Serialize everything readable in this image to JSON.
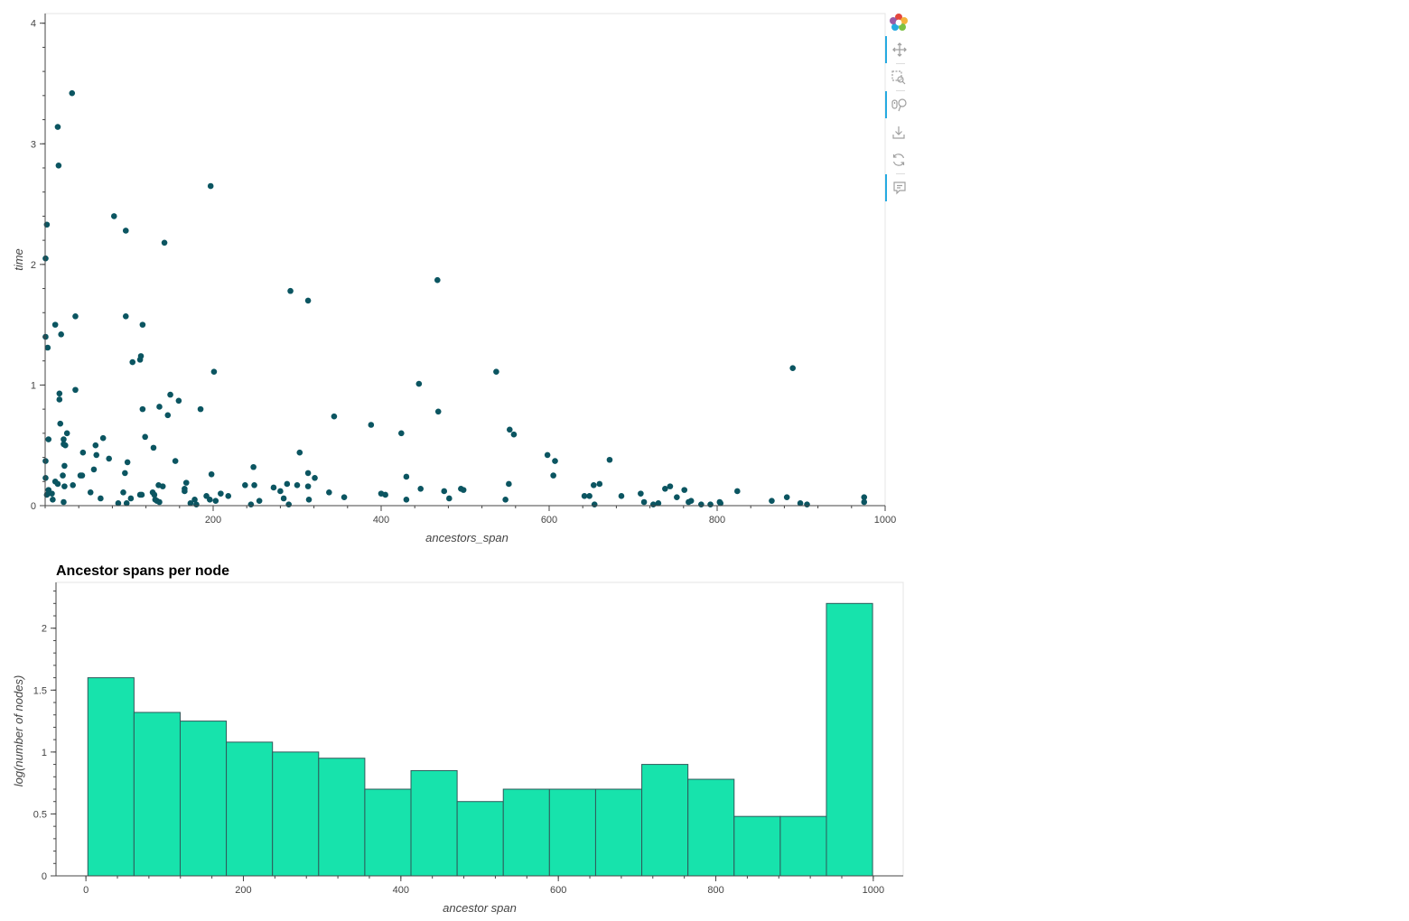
{
  "colors": {
    "scatter_point": "#0b5561",
    "bar_fill": "#17e3ac",
    "bar_stroke": "#2f5a5a",
    "axis": "#444444",
    "frame": "#e5e5e5",
    "toolbar_active": "#26aae1",
    "toolbar_icon": "#a0a0a0"
  },
  "toolbar": {
    "tools": [
      {
        "name": "bokeh-logo-icon",
        "active": false
      },
      {
        "name": "pan-icon",
        "active": true
      },
      {
        "name": "box-zoom-icon",
        "active": false
      },
      {
        "name": "wheel-zoom-icon",
        "active": true
      },
      {
        "name": "save-icon",
        "active": false
      },
      {
        "name": "reset-icon",
        "active": false
      },
      {
        "name": "hover-icon",
        "active": true
      }
    ]
  },
  "chart_data": [
    {
      "type": "scatter",
      "title": "",
      "xlabel": "ancestors_span",
      "ylabel": "time",
      "xlim": [
        0,
        1000
      ],
      "ylim": [
        0,
        4.08
      ],
      "x_ticks": [
        200,
        400,
        600,
        800,
        1000
      ],
      "y_ticks": [
        0,
        1,
        2,
        3,
        4
      ],
      "grid": false,
      "points": [
        [
          32,
          3.42
        ],
        [
          15,
          3.14
        ],
        [
          16,
          2.82
        ],
        [
          197,
          2.65
        ],
        [
          2,
          2.33
        ],
        [
          82,
          2.4
        ],
        [
          96,
          2.28
        ],
        [
          142,
          2.18
        ],
        [
          0.5,
          2.05
        ],
        [
          292,
          1.78
        ],
        [
          313,
          1.7
        ],
        [
          467,
          1.87
        ],
        [
          36,
          1.57
        ],
        [
          96,
          1.57
        ],
        [
          116,
          1.5
        ],
        [
          12,
          1.5
        ],
        [
          19,
          1.42
        ],
        [
          0.5,
          1.4
        ],
        [
          3,
          1.31
        ],
        [
          114,
          1.24
        ],
        [
          113,
          1.21
        ],
        [
          104,
          1.19
        ],
        [
          201,
          1.11
        ],
        [
          537,
          1.11
        ],
        [
          890,
          1.14
        ],
        [
          445,
          1.01
        ],
        [
          36,
          0.96
        ],
        [
          17,
          0.93
        ],
        [
          17,
          0.88
        ],
        [
          149,
          0.92
        ],
        [
          159,
          0.87
        ],
        [
          136,
          0.82
        ],
        [
          116,
          0.8
        ],
        [
          185,
          0.8
        ],
        [
          146,
          0.75
        ],
        [
          344,
          0.74
        ],
        [
          468,
          0.78
        ],
        [
          388,
          0.67
        ],
        [
          18,
          0.68
        ],
        [
          553,
          0.63
        ],
        [
          558,
          0.59
        ],
        [
          424,
          0.6
        ],
        [
          26,
          0.6
        ],
        [
          119,
          0.57
        ],
        [
          4,
          0.55
        ],
        [
          22,
          0.55
        ],
        [
          69,
          0.56
        ],
        [
          22,
          0.51
        ],
        [
          24,
          0.5
        ],
        [
          60,
          0.5
        ],
        [
          129,
          0.48
        ],
        [
          45,
          0.44
        ],
        [
          303,
          0.44
        ],
        [
          598,
          0.42
        ],
        [
          61,
          0.42
        ],
        [
          0.5,
          0.37
        ],
        [
          76,
          0.39
        ],
        [
          155,
          0.37
        ],
        [
          98,
          0.36
        ],
        [
          607,
          0.37
        ],
        [
          672,
          0.38
        ],
        [
          248,
          0.32
        ],
        [
          58,
          0.3
        ],
        [
          23,
          0.33
        ],
        [
          95,
          0.27
        ],
        [
          198,
          0.26
        ],
        [
          313,
          0.27
        ],
        [
          21,
          0.25
        ],
        [
          44,
          0.25
        ],
        [
          42,
          0.25
        ],
        [
          430,
          0.24
        ],
        [
          605,
          0.25
        ],
        [
          321,
          0.23
        ],
        [
          12,
          0.2
        ],
        [
          0.5,
          0.23
        ],
        [
          15,
          0.18
        ],
        [
          33,
          0.17
        ],
        [
          4,
          0.13
        ],
        [
          23,
          0.16
        ],
        [
          135,
          0.17
        ],
        [
          140,
          0.16
        ],
        [
          238,
          0.17
        ],
        [
          249,
          0.17
        ],
        [
          272,
          0.15
        ],
        [
          288,
          0.18
        ],
        [
          300,
          0.17
        ],
        [
          313,
          0.16
        ],
        [
          168,
          0.19
        ],
        [
          166,
          0.14
        ],
        [
          166,
          0.12
        ],
        [
          552,
          0.18
        ],
        [
          447,
          0.14
        ],
        [
          495,
          0.14
        ],
        [
          498,
          0.13
        ],
        [
          660,
          0.18
        ],
        [
          653,
          0.17
        ],
        [
          744,
          0.16
        ],
        [
          738,
          0.14
        ],
        [
          761,
          0.13
        ],
        [
          824,
          0.12
        ],
        [
          54,
          0.11
        ],
        [
          2,
          0.09
        ],
        [
          8,
          0.1
        ],
        [
          93,
          0.11
        ],
        [
          113,
          0.09
        ],
        [
          115,
          0.09
        ],
        [
          128,
          0.11
        ],
        [
          130,
          0.09
        ],
        [
          209,
          0.1
        ],
        [
          218,
          0.08
        ],
        [
          280,
          0.12
        ],
        [
          338,
          0.11
        ],
        [
          356,
          0.07
        ],
        [
          400,
          0.1
        ],
        [
          405,
          0.09
        ],
        [
          475,
          0.12
        ],
        [
          481,
          0.06
        ],
        [
          642,
          0.08
        ],
        [
          648,
          0.08
        ],
        [
          686,
          0.08
        ],
        [
          709,
          0.1
        ],
        [
          752,
          0.07
        ],
        [
          883,
          0.07
        ],
        [
          975,
          0.07
        ],
        [
          9,
          0.05
        ],
        [
          22,
          0.03
        ],
        [
          66,
          0.06
        ],
        [
          102,
          0.06
        ],
        [
          131,
          0.05
        ],
        [
          133,
          0.04
        ],
        [
          136,
          0.03
        ],
        [
          178,
          0.05
        ],
        [
          192,
          0.08
        ],
        [
          196,
          0.05
        ],
        [
          203,
          0.04
        ],
        [
          255,
          0.04
        ],
        [
          284,
          0.06
        ],
        [
          314,
          0.05
        ],
        [
          430,
          0.05
        ],
        [
          548,
          0.05
        ],
        [
          87,
          0.02
        ],
        [
          97,
          0.02
        ],
        [
          173,
          0.02
        ],
        [
          180,
          0.01
        ],
        [
          245,
          0.01
        ],
        [
          290,
          0.01
        ],
        [
          654,
          0.01
        ],
        [
          713,
          0.03
        ],
        [
          724,
          0.01
        ],
        [
          730,
          0.02
        ],
        [
          766,
          0.03
        ],
        [
          769,
          0.04
        ],
        [
          781,
          0.01
        ],
        [
          792,
          0.01
        ],
        [
          803,
          0.03
        ],
        [
          804,
          0.02
        ],
        [
          865,
          0.04
        ],
        [
          899,
          0.02
        ],
        [
          907,
          0.01
        ],
        [
          975,
          0.03
        ]
      ]
    },
    {
      "type": "bar",
      "title": "Ancestor spans per node",
      "xlabel": "ancestor span",
      "ylabel": "log(number of nodes)",
      "xlim": [
        -38,
        1038
      ],
      "ylim": [
        0,
        2.37
      ],
      "x_ticks": [
        0,
        200,
        400,
        600,
        800,
        1000
      ],
      "y_ticks": [
        0,
        0.5,
        1,
        1.5,
        2
      ],
      "y_tick_labels": [
        "0",
        "0.5",
        "1",
        "1.5",
        "2"
      ],
      "grid": false,
      "bin_edges": [
        2.45,
        61.08,
        119.71,
        178.33,
        236.96,
        295.59,
        354.21,
        412.84,
        471.47,
        530.1,
        588.72,
        647.35,
        705.98,
        764.6,
        823.23,
        881.86,
        940.48,
        999.11
      ],
      "values": [
        1.6,
        1.32,
        1.25,
        1.08,
        1.0,
        0.95,
        0.7,
        0.85,
        0.6,
        0.7,
        0.7,
        0.7,
        0.9,
        0.78,
        0.48,
        0.48,
        2.2
      ]
    }
  ]
}
